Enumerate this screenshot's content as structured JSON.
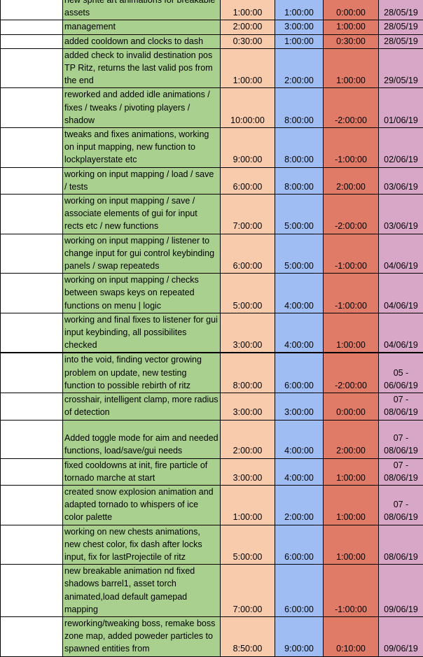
{
  "colors": {
    "description": "#a9d08e",
    "estimated": "#f8cbad",
    "actual": "#9fbdf2",
    "difference": "#e07b68",
    "date": "#d8a7c7"
  },
  "rows": [
    {
      "desc": "new sprite art animations for breakable assets",
      "est": "1:00:00",
      "act": "1:00:00",
      "diff": "0:00:00",
      "date": "28/05/19"
    },
    {
      "desc": "management",
      "est": "2:00:00",
      "act": "3:00:00",
      "diff": "1:00:00",
      "date": "28/05/19"
    },
    {
      "desc": "added cooldown and clocks to dash",
      "est": "0:30:00",
      "act": "1:00:00",
      "diff": "0:30:00",
      "date": "28/05/19"
    },
    {
      "desc": "added check to invalid destination pos TP Ritz, returns the last valid pos from the end",
      "est": "1:00:00",
      "act": "2:00:00",
      "diff": "1:00:00",
      "date": "29/05/19"
    },
    {
      "desc": "reworked and added idle animations / fixes / tweaks / pivoting players / shadow",
      "est": "10:00:00",
      "act": "8:00:00",
      "diff": "-2:00:00",
      "date": "01/06/19"
    },
    {
      "desc": "tweaks and fixes animations, working on input mapping, new function to lockplayerstate etc",
      "est": "9:00:00",
      "act": "8:00:00",
      "diff": "-1:00:00",
      "date": "02/06/19"
    },
    {
      "desc": "working on input mapping / load / save / tests",
      "est": "6:00:00",
      "act": "8:00:00",
      "diff": "2:00:00",
      "date": "03/06/19"
    },
    {
      "desc": "working on input mapping / save / associate elements of gui for input rects etc / new functions",
      "est": "7:00:00",
      "act": "5:00:00",
      "diff": "-2:00:00",
      "date": "03/06/19"
    },
    {
      "desc": "working on input mapping / listener to change input for gui control keybinding panels / swap repeateds",
      "est": "6:00:00",
      "act": "5:00:00",
      "diff": "-1:00:00",
      "date": "04/06/19"
    },
    {
      "desc": "working on input mapping / checks between swaps keys on repeated functions on menu | logic",
      "est": "5:00:00",
      "act": "4:00:00",
      "diff": "-1:00:00",
      "date": "04/06/19"
    },
    {
      "desc": "working and final fixes to listener for gui input keybinding, all possibilites checked",
      "est": "3:00:00",
      "act": "4:00:00",
      "diff": "1:00:00",
      "date": "04/06/19"
    },
    {
      "desc": "into the void, finding vector growing problem on update, new testing function to possible rebirth of ritz",
      "est": "8:00:00",
      "act": "6:00:00",
      "diff": "-2:00:00",
      "date": "05 - 06/06/19"
    },
    {
      "desc": "crosshair, intelligent clamp, more radius of detection",
      "est": "3:00:00",
      "act": "3:00:00",
      "diff": "0:00:00",
      "date": "07 - 08/06/19"
    },
    {
      "desc": "Added toggle mode for aim and needed functions, load/save/gui needs",
      "est": "2:00:00",
      "act": "4:00:00",
      "diff": "2:00:00",
      "date": "07 - 08/06/19"
    },
    {
      "desc": "fixed cooldowns at init, fire particle of tornado marche at start",
      "est": "3:00:00",
      "act": "4:00:00",
      "diff": "1:00:00",
      "date": "07 - 08/06/19"
    },
    {
      "desc": "created snow explosion animation and adapted tornado to whispers of ice color palette",
      "est": "1:00:00",
      "act": "2:00:00",
      "diff": "1:00:00",
      "date": "07 - 08/06/19"
    },
    {
      "desc": "working on new chests animations, new chest color, fix dash after locks input, fix for lastProjectile of ritz",
      "est": "5:00:00",
      "act": "6:00:00",
      "diff": "1:00:00",
      "date": "08/06/19"
    },
    {
      "desc": "new breakable animation nd fixed shadows barrel1, asset torch animated,load default gamepad mapping",
      "est": "7:00:00",
      "act": "6:00:00",
      "diff": "-1:00:00",
      "date": "09/06/19"
    },
    {
      "desc": "reworking/tweaking boss, remake boss zone map, added poweder particles to spawned entities from",
      "est": "8:50:00",
      "act": "9:00:00",
      "diff": "0:10:00",
      "date": "09/06/19"
    }
  ]
}
